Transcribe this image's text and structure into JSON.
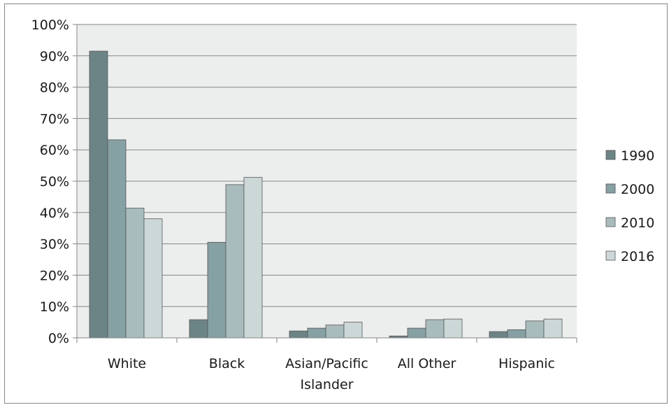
{
  "chart_data": {
    "type": "bar",
    "categories": [
      [
        "White"
      ],
      [
        "Black"
      ],
      [
        "Asian/Pacific",
        "Islander"
      ],
      [
        "All Other"
      ],
      [
        "Hispanic"
      ]
    ],
    "series": [
      {
        "name": "1990",
        "color": "#6b8587",
        "values": [
          91.5,
          5.8,
          2.2,
          0.6,
          2.0
        ]
      },
      {
        "name": "2000",
        "color": "#85a1a3",
        "values": [
          63.2,
          30.5,
          3.1,
          3.1,
          2.6
        ]
      },
      {
        "name": "2010",
        "color": "#a8bcbe",
        "values": [
          41.4,
          48.9,
          4.1,
          5.8,
          5.4
        ]
      },
      {
        "name": "2016",
        "color": "#ccd8d8",
        "values": [
          38.0,
          51.2,
          5.0,
          6.0,
          6.0
        ]
      }
    ],
    "ylim": [
      0,
      100
    ],
    "y_ticks": [
      "0%",
      "10%",
      "20%",
      "30%",
      "40%",
      "50%",
      "60%",
      "70%",
      "80%",
      "90%",
      "100%"
    ],
    "grid": true,
    "legend": "right",
    "plot_background": "#eceeee",
    "bar_edge_color": "#555555"
  }
}
